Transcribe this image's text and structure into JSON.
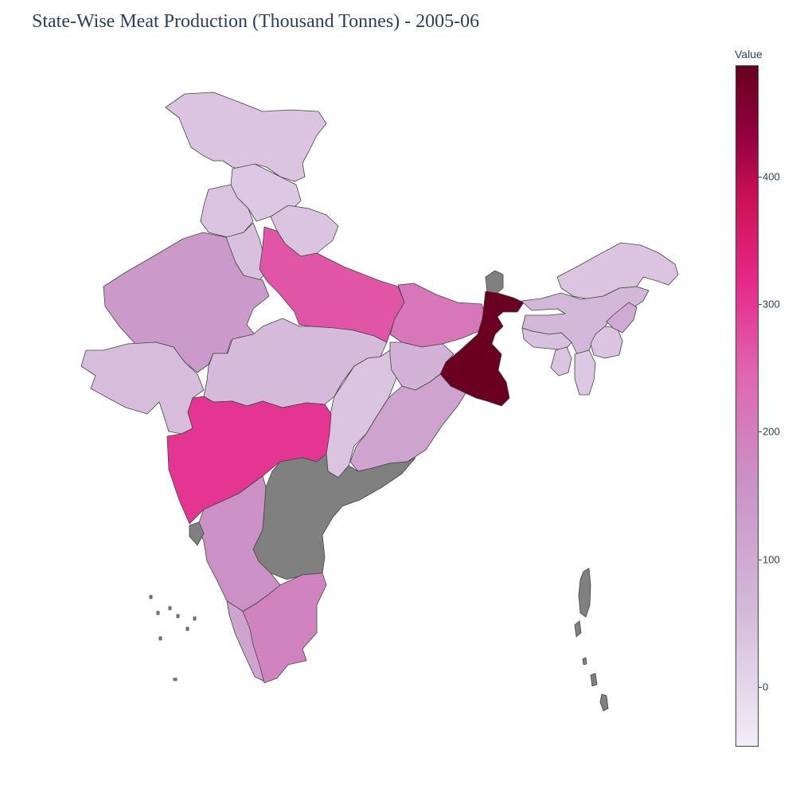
{
  "title": "State-Wise Meat Production (Thousand Tonnes) - 2005-06",
  "colorbar": {
    "title": "Value",
    "ticks": [
      "0",
      "100",
      "200",
      "300",
      "400"
    ],
    "colorscale": [
      "#f1eef6",
      "#d4b9da",
      "#c994c7",
      "#df65b0",
      "#e7298a",
      "#ce1256",
      "#91003f",
      "#67001f"
    ],
    "range": [
      -50,
      485
    ]
  },
  "no_data_color": "#808080",
  "regions": [
    {
      "id": "jammu-kashmir",
      "value": 10
    },
    {
      "id": "himachal-pradesh",
      "value": 5
    },
    {
      "id": "punjab",
      "value": 12
    },
    {
      "id": "haryana",
      "value": 15
    },
    {
      "id": "uttarakhand",
      "value": 10
    },
    {
      "id": "rajasthan",
      "value": 90
    },
    {
      "id": "uttar-pradesh",
      "value": 200
    },
    {
      "id": "bihar",
      "value": 150
    },
    {
      "id": "sikkim",
      "value": null
    },
    {
      "id": "west-bengal",
      "value": 480
    },
    {
      "id": "madhya-pradesh",
      "value": 25
    },
    {
      "id": "gujarat",
      "value": 20
    },
    {
      "id": "chhattisgarh",
      "value": 10
    },
    {
      "id": "jharkhand",
      "value": 40
    },
    {
      "id": "odisha",
      "value": 70
    },
    {
      "id": "maharashtra",
      "value": 240
    },
    {
      "id": "andhra-pradesh",
      "value": null
    },
    {
      "id": "karnataka",
      "value": 110
    },
    {
      "id": "goa",
      "value": null
    },
    {
      "id": "kerala",
      "value": 70
    },
    {
      "id": "tamil-nadu",
      "value": 130
    },
    {
      "id": "arunachal-pradesh",
      "value": 10
    },
    {
      "id": "assam",
      "value": 30
    },
    {
      "id": "meghalaya",
      "value": 15
    },
    {
      "id": "tripura",
      "value": 10
    },
    {
      "id": "mizoram",
      "value": 5
    },
    {
      "id": "manipur",
      "value": 10
    },
    {
      "id": "nagaland",
      "value": 60
    },
    {
      "id": "andaman-nicobar",
      "value": null
    },
    {
      "id": "lakshadweep",
      "value": null
    }
  ]
}
